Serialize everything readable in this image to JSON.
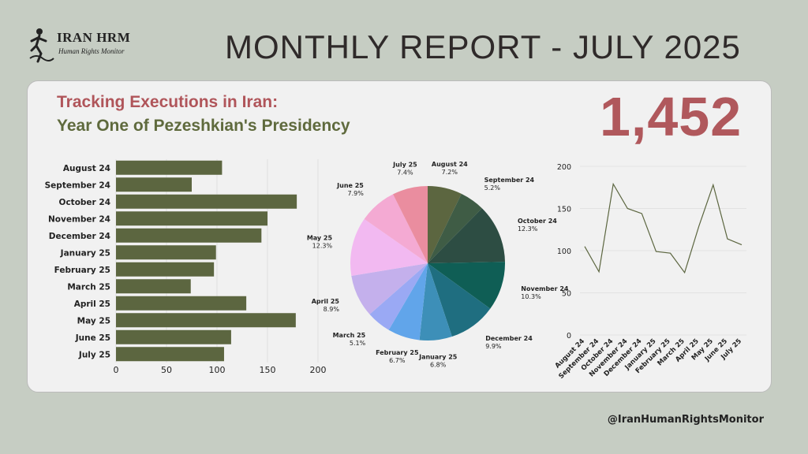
{
  "logo": {
    "name": "IRAN HRM",
    "subtitle": "Human Rights Monitor"
  },
  "header": {
    "title": "MONTHLY REPORT - JULY 2025"
  },
  "subtitle": {
    "line1": "Tracking Executions in Iran:",
    "line2": "Year One of Pezeshkian's Presidency"
  },
  "total": "1,452",
  "footer": {
    "handle": "@IranHumanRightsMonitor"
  },
  "chart_data": [
    {
      "type": "bar",
      "orientation": "horizontal",
      "categories": [
        "August 24",
        "September 24",
        "October 24",
        "November 24",
        "December 24",
        "January 25",
        "February 25",
        "March 25",
        "April 25",
        "May 25",
        "June 25",
        "July 25"
      ],
      "values": [
        105,
        75,
        179,
        150,
        144,
        99,
        97,
        74,
        129,
        178,
        114,
        107
      ],
      "xticks": [
        0,
        50,
        100,
        150,
        200
      ],
      "xlim": [
        0,
        200
      ],
      "color": "#5c6640",
      "grid": true
    },
    {
      "type": "pie",
      "slices": [
        {
          "label": "August 24",
          "pct": "7.2%",
          "value": 7.2,
          "color": "#5c6640"
        },
        {
          "label": "September 24",
          "pct": "5.2%",
          "value": 5.2,
          "color": "#3f5c45"
        },
        {
          "label": "October 24",
          "pct": "12.3%",
          "value": 12.3,
          "color": "#2d4d43"
        },
        {
          "label": "November 24",
          "pct": "10.3%",
          "value": 10.3,
          "color": "#0f5e55"
        },
        {
          "label": "December 24",
          "pct": "9.9%",
          "value": 9.9,
          "color": "#1f6e80"
        },
        {
          "label": "January 25",
          "pct": "6.8%",
          "value": 6.8,
          "color": "#3d8fb8"
        },
        {
          "label": "February 25",
          "pct": "6.7%",
          "value": 6.7,
          "color": "#61a5ea"
        },
        {
          "label": "March 25",
          "pct": "5.1%",
          "value": 5.1,
          "color": "#9aa9f4"
        },
        {
          "label": "April 25",
          "pct": "8.9%",
          "value": 8.9,
          "color": "#c4b0ec"
        },
        {
          "label": "May 25",
          "pct": "12.3%",
          "value": 12.3,
          "color": "#f2b9f1"
        },
        {
          "label": "June 25",
          "pct": "7.9%",
          "value": 7.9,
          "color": "#f4aad3"
        },
        {
          "label": "July 25",
          "pct": "7.4%",
          "value": 7.4,
          "color": "#ea8d9f"
        }
      ]
    },
    {
      "type": "line",
      "x": [
        "August 24",
        "September 24",
        "October 24",
        "November 24",
        "December 24",
        "January 25",
        "February 25",
        "March 25",
        "April 25",
        "May 25",
        "June 25",
        "July 25"
      ],
      "values": [
        105,
        75,
        179,
        150,
        144,
        99,
        97,
        74,
        129,
        178,
        114,
        107
      ],
      "yticks": [
        0,
        50,
        100,
        150,
        200
      ],
      "ylim": [
        0,
        200
      ],
      "color": "#5c6640",
      "grid": true
    }
  ]
}
